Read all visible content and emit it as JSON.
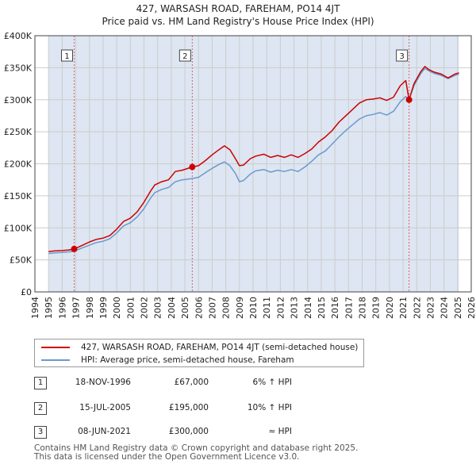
{
  "chart_data": {
    "type": "line",
    "title": "427, WARSASH ROAD, FAREHAM, PO14 4JT",
    "subtitle": "Price paid vs. HM Land Registry's House Price Index (HPI)",
    "xlim": [
      1994,
      2026
    ],
    "ylim": [
      0,
      400000
    ],
    "y_ticks": [
      {
        "value": 0,
        "label": "£0"
      },
      {
        "value": 50000,
        "label": "£50K"
      },
      {
        "value": 100000,
        "label": "£100K"
      },
      {
        "value": 150000,
        "label": "£150K"
      },
      {
        "value": 200000,
        "label": "£200K"
      },
      {
        "value": 250000,
        "label": "£250K"
      },
      {
        "value": 300000,
        "label": "£300K"
      },
      {
        "value": 350000,
        "label": "£350K"
      },
      {
        "value": 400000,
        "label": "£400K"
      }
    ],
    "x_ticks": [
      "1994",
      "1995",
      "1996",
      "1997",
      "1998",
      "1999",
      "2000",
      "2001",
      "2002",
      "2003",
      "2004",
      "2005",
      "2006",
      "2007",
      "2008",
      "2009",
      "2010",
      "2011",
      "2012",
      "2013",
      "2014",
      "2015",
      "2016",
      "2017",
      "2018",
      "2019",
      "2020",
      "2021",
      "2022",
      "2023",
      "2024",
      "2025",
      "2026"
    ],
    "grid": true,
    "data_range_shading": [
      1995.0,
      2025.1
    ],
    "series": [
      {
        "name": "427, WARSASH ROAD, FAREHAM, PO14 4JT (semi-detached house)",
        "color": "#cc0000",
        "points": [
          [
            1995.0,
            63000
          ],
          [
            1995.5,
            64000
          ],
          [
            1996.0,
            64500
          ],
          [
            1996.5,
            65500
          ],
          [
            1996.88,
            67000
          ],
          [
            1997.5,
            73000
          ],
          [
            1998.0,
            78000
          ],
          [
            1998.5,
            82000
          ],
          [
            1999.0,
            84000
          ],
          [
            1999.5,
            88000
          ],
          [
            2000.0,
            98000
          ],
          [
            2000.5,
            110000
          ],
          [
            2001.0,
            115000
          ],
          [
            2001.5,
            125000
          ],
          [
            2002.0,
            140000
          ],
          [
            2002.5,
            158000
          ],
          [
            2002.8,
            167000
          ],
          [
            2003.3,
            172000
          ],
          [
            2003.8,
            175000
          ],
          [
            2004.3,
            188000
          ],
          [
            2004.8,
            190000
          ],
          [
            2005.54,
            195000
          ],
          [
            2006.0,
            197000
          ],
          [
            2006.5,
            205000
          ],
          [
            2007.0,
            214000
          ],
          [
            2007.5,
            222000
          ],
          [
            2007.9,
            228000
          ],
          [
            2008.3,
            222000
          ],
          [
            2008.7,
            208000
          ],
          [
            2009.0,
            197000
          ],
          [
            2009.3,
            198000
          ],
          [
            2009.8,
            208000
          ],
          [
            2010.2,
            212000
          ],
          [
            2010.8,
            215000
          ],
          [
            2011.3,
            210000
          ],
          [
            2011.8,
            213000
          ],
          [
            2012.3,
            210000
          ],
          [
            2012.8,
            214000
          ],
          [
            2013.3,
            210000
          ],
          [
            2013.8,
            216000
          ],
          [
            2014.3,
            223000
          ],
          [
            2014.8,
            234000
          ],
          [
            2015.3,
            242000
          ],
          [
            2015.8,
            252000
          ],
          [
            2016.3,
            265000
          ],
          [
            2016.8,
            275000
          ],
          [
            2017.3,
            285000
          ],
          [
            2017.8,
            295000
          ],
          [
            2018.3,
            300000
          ],
          [
            2018.8,
            301000
          ],
          [
            2019.3,
            303000
          ],
          [
            2019.8,
            299000
          ],
          [
            2020.3,
            304000
          ],
          [
            2020.8,
            322000
          ],
          [
            2021.2,
            330000
          ],
          [
            2021.44,
            300000
          ],
          [
            2021.8,
            325000
          ],
          [
            2022.3,
            344000
          ],
          [
            2022.6,
            352000
          ],
          [
            2022.9,
            347000
          ],
          [
            2023.3,
            343000
          ],
          [
            2023.8,
            340000
          ],
          [
            2024.3,
            334000
          ],
          [
            2024.8,
            340000
          ],
          [
            2025.1,
            342000
          ]
        ]
      },
      {
        "name": "HPI: Average price, semi-detached house, Fareham",
        "color": "#6b9acc",
        "points": [
          [
            1995.0,
            60000
          ],
          [
            1995.5,
            61000
          ],
          [
            1996.0,
            61500
          ],
          [
            1996.5,
            62500
          ],
          [
            1996.88,
            63500
          ],
          [
            1997.5,
            69000
          ],
          [
            1998.0,
            73000
          ],
          [
            1998.5,
            77000
          ],
          [
            1999.0,
            79000
          ],
          [
            1999.5,
            83000
          ],
          [
            2000.0,
            92000
          ],
          [
            2000.5,
            103000
          ],
          [
            2001.0,
            108000
          ],
          [
            2001.5,
            117000
          ],
          [
            2002.0,
            130000
          ],
          [
            2002.5,
            147000
          ],
          [
            2002.8,
            155000
          ],
          [
            2003.3,
            160000
          ],
          [
            2003.8,
            163000
          ],
          [
            2004.3,
            172000
          ],
          [
            2004.8,
            175000
          ],
          [
            2005.54,
            177000
          ],
          [
            2006.0,
            179000
          ],
          [
            2006.5,
            186000
          ],
          [
            2007.0,
            193000
          ],
          [
            2007.5,
            199000
          ],
          [
            2007.9,
            203000
          ],
          [
            2008.3,
            197000
          ],
          [
            2008.7,
            185000
          ],
          [
            2009.0,
            172000
          ],
          [
            2009.3,
            174000
          ],
          [
            2009.8,
            184000
          ],
          [
            2010.2,
            189000
          ],
          [
            2010.8,
            191000
          ],
          [
            2011.3,
            187000
          ],
          [
            2011.8,
            190000
          ],
          [
            2012.3,
            188000
          ],
          [
            2012.8,
            191000
          ],
          [
            2013.3,
            188000
          ],
          [
            2013.8,
            195000
          ],
          [
            2014.3,
            204000
          ],
          [
            2014.8,
            214000
          ],
          [
            2015.3,
            220000
          ],
          [
            2015.8,
            231000
          ],
          [
            2016.3,
            242000
          ],
          [
            2016.8,
            252000
          ],
          [
            2017.3,
            261000
          ],
          [
            2017.8,
            270000
          ],
          [
            2018.3,
            275000
          ],
          [
            2018.8,
            277000
          ],
          [
            2019.3,
            280000
          ],
          [
            2019.8,
            276000
          ],
          [
            2020.3,
            282000
          ],
          [
            2020.8,
            297000
          ],
          [
            2021.2,
            305000
          ],
          [
            2021.44,
            300000
          ],
          [
            2021.8,
            322000
          ],
          [
            2022.3,
            341000
          ],
          [
            2022.6,
            349000
          ],
          [
            2022.9,
            345000
          ],
          [
            2023.3,
            341000
          ],
          [
            2023.8,
            338000
          ],
          [
            2024.3,
            333000
          ],
          [
            2024.8,
            338000
          ],
          [
            2025.1,
            340000
          ]
        ]
      }
    ],
    "transactions": [
      {
        "label": "1",
        "x": 1996.88,
        "price": 67000
      },
      {
        "label": "2",
        "x": 2005.54,
        "price": 195000
      },
      {
        "label": "3",
        "x": 2021.44,
        "price": 300000
      }
    ]
  },
  "legend": {
    "property_label": "427, WARSASH ROAD, FAREHAM, PO14 4JT (semi-detached house)",
    "hpi_label": "HPI: Average price, semi-detached house, Fareham"
  },
  "table": [
    {
      "num": "1",
      "date": "18-NOV-1996",
      "price": "£67,000",
      "relation": "6% ↑ HPI"
    },
    {
      "num": "2",
      "date": "15-JUL-2005",
      "price": "£195,000",
      "relation": "10% ↑ HPI"
    },
    {
      "num": "3",
      "date": "08-JUN-2021",
      "price": "£300,000",
      "relation": "≈ HPI"
    }
  ],
  "footer": {
    "line1": "Contains HM Land Registry data © Crown copyright and database right 2025.",
    "line2": "This data is licensed under the Open Government Licence v3.0."
  },
  "colors": {
    "property": "#cc0000",
    "hpi": "#6b9acc",
    "shade": "#dde6f2",
    "grid": "#cccccc"
  }
}
